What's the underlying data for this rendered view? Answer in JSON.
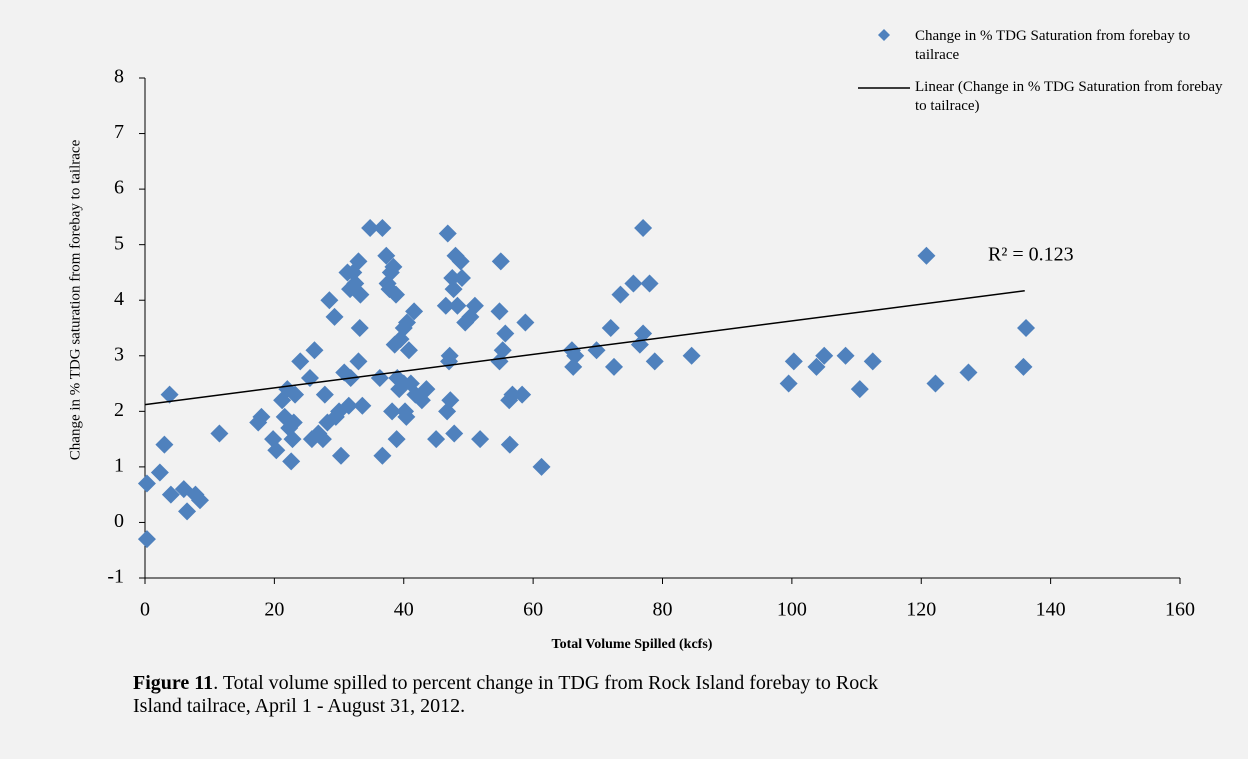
{
  "chart_data": {
    "type": "scatter",
    "xlabel": "Total Volume Spilled (kcfs)",
    "ylabel": "Change in % TDG saturation from forebay to tailrace",
    "annotation": "R² = 0.123",
    "caption_label": "Figure 11",
    "caption_text": ". Total volume spilled to percent change in TDG from Rock Island forebay to Rock Island tailrace, April 1 - August 31, 2012.",
    "xlim": [
      0,
      160
    ],
    "xticks": [
      0,
      20,
      40,
      60,
      80,
      100,
      120,
      140,
      160
    ],
    "ylim": [
      -1,
      8
    ],
    "yticks": [
      -1,
      0,
      1,
      2,
      3,
      4,
      5,
      6,
      7,
      8
    ],
    "grid": false,
    "legend": "top-right",
    "series": [
      {
        "name": "Change in % TDG Saturation from forebay to tailrace",
        "color": "#4f81bd",
        "marker": "diamond",
        "x": [
          0.3,
          0.3,
          2.3,
          3,
          3.8,
          4,
          6,
          6.5,
          7.8,
          8.5,
          11.5,
          17.5,
          18,
          19.8,
          20.3,
          21.2,
          21.6,
          22,
          22.3,
          22.6,
          22.8,
          23,
          23.2,
          24,
          25.5,
          25.8,
          26.2,
          26.8,
          27.5,
          27.8,
          28.2,
          28.5,
          29.3,
          29.5,
          30,
          30.3,
          30.8,
          31.3,
          31.5,
          31.7,
          31.8,
          32.2,
          32.5,
          33,
          33,
          33.2,
          33.3,
          33.6,
          34.8,
          36.3,
          36.7,
          36.7,
          37.3,
          37.5,
          37.8,
          38,
          38.2,
          38.4,
          38.6,
          38.8,
          38.9,
          39,
          39.3,
          39.5,
          40,
          40,
          40.2,
          40.4,
          40.5,
          40.8,
          41.1,
          41.6,
          41.8,
          42.8,
          43.5,
          45,
          46.5,
          46.7,
          46.8,
          47,
          47.1,
          47.2,
          47.5,
          47.7,
          47.8,
          48,
          48.3,
          48.8,
          49,
          49.5,
          50.3,
          51,
          51.8,
          54.8,
          54.8,
          55,
          55.3,
          55.7,
          56.3,
          56.4,
          56.8,
          58.3,
          58.8,
          61.3,
          66,
          66.2,
          66.5,
          69.8,
          72,
          72.5,
          73.5,
          75.5,
          76.5,
          77,
          77,
          78,
          78.8,
          84.5,
          99.5,
          100.3,
          103.8,
          105,
          108.3,
          110.5,
          112.5,
          120.8,
          122.2,
          127.3,
          135.8,
          136.2
        ],
        "values": [
          0.7,
          -0.3,
          0.9,
          1.4,
          2.3,
          0.5,
          0.6,
          0.2,
          0.5,
          0.4,
          1.6,
          1.8,
          1.9,
          1.5,
          1.3,
          2.2,
          1.9,
          2.4,
          1.7,
          1.1,
          1.5,
          1.8,
          2.3,
          2.9,
          2.6,
          1.5,
          3.1,
          1.6,
          1.5,
          2.3,
          1.8,
          4.0,
          3.7,
          1.9,
          2.0,
          1.2,
          2.7,
          4.5,
          2.1,
          4.2,
          2.6,
          4.5,
          4.3,
          4.7,
          2.9,
          3.5,
          4.1,
          2.1,
          5.3,
          2.6,
          5.3,
          1.2,
          4.8,
          4.3,
          4.2,
          4.5,
          2.0,
          4.6,
          3.2,
          4.1,
          1.5,
          2.6,
          2.4,
          3.3,
          2.5,
          3.5,
          2.0,
          1.9,
          3.6,
          3.1,
          2.5,
          3.8,
          2.3,
          2.2,
          2.4,
          1.5,
          3.9,
          2.0,
          5.2,
          2.9,
          3.0,
          2.2,
          4.4,
          4.2,
          1.6,
          4.8,
          3.9,
          4.7,
          4.4,
          3.6,
          3.7,
          3.9,
          1.5,
          3.8,
          2.9,
          4.7,
          3.1,
          3.4,
          2.2,
          1.4,
          2.3,
          2.3,
          3.6,
          1.0,
          3.1,
          2.8,
          3.0,
          3.1,
          3.5,
          2.8,
          4.1,
          4.3,
          3.2,
          5.3,
          3.4,
          4.3,
          2.9,
          3.0,
          2.5,
          2.9,
          2.8,
          3.0,
          3.0,
          2.4,
          2.9,
          4.8,
          2.5,
          2.7,
          2.8,
          3.5
        ]
      },
      {
        "name": "Linear (Change in % TDG Saturation from forebay to tailrace)",
        "color": "#000000",
        "marker": "line",
        "x": [
          0,
          136
        ],
        "values": [
          2.12,
          4.17
        ]
      }
    ]
  }
}
